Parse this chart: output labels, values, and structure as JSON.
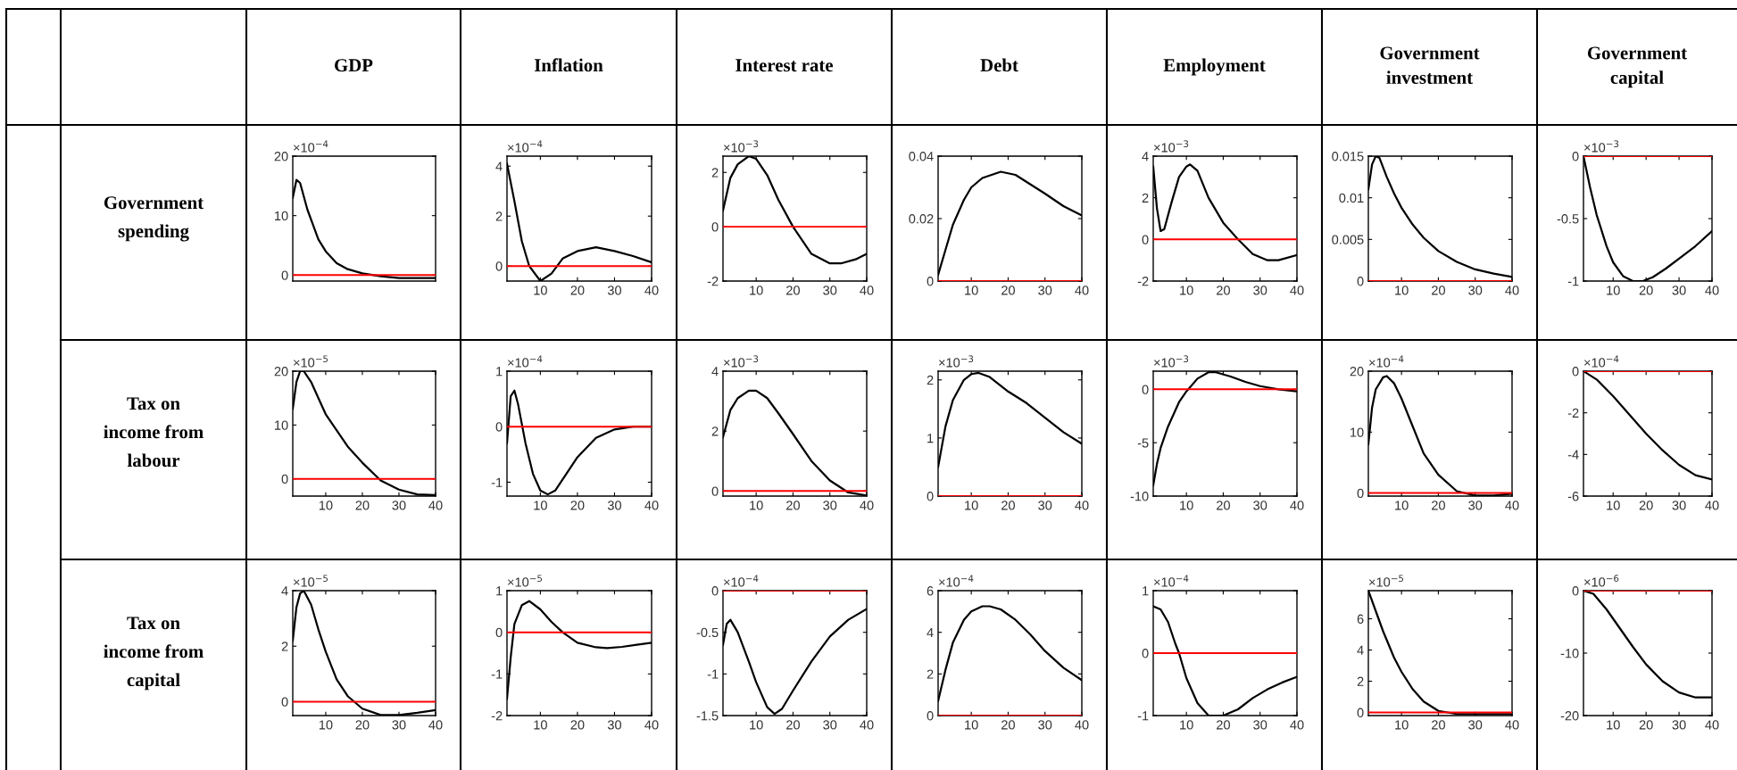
{
  "chart_data": [
    {
      "type": "line",
      "title": "GDP",
      "ylabel": "Government\nspending",
      "tick_labels": "y",
      "xlim": [
        1,
        40
      ],
      "ylim": [
        -1,
        20
      ],
      "yticks": [
        0,
        10,
        20
      ],
      "annotations": [
        "×10$^{−4}$"
      ],
      "ref_lines": [
        {
          "axis": "y",
          "value": 0,
          "color": "#ff0000"
        }
      ],
      "series": [
        {
          "color": "#000000",
          "x": [
            1,
            2,
            3,
            5,
            8,
            10,
            13,
            16,
            20,
            25,
            30,
            40
          ],
          "values": [
            13,
            16,
            15.5,
            11,
            6,
            4,
            2,
            1,
            0.3,
            -0.2,
            -0.5,
            -0.5
          ]
        }
      ]
    },
    {
      "type": "line",
      "title": "Inflation",
      "xlim": [
        1,
        40
      ],
      "ylim": [
        -0.6,
        4.4
      ],
      "xticks": [
        10,
        20,
        30,
        40
      ],
      "yticks": [
        0,
        2,
        4
      ],
      "annotations": [
        "×10$^{−4}$"
      ],
      "ref_lines": [
        {
          "axis": "y",
          "value": 0,
          "color": "#ff0000"
        }
      ],
      "series": [
        {
          "color": "#000000",
          "x": [
            1,
            3,
            5,
            7,
            10,
            13,
            16,
            20,
            25,
            30,
            35,
            40
          ],
          "values": [
            4.1,
            2.6,
            1.0,
            0.0,
            -0.6,
            -0.3,
            0.3,
            0.6,
            0.75,
            0.6,
            0.4,
            0.15
          ]
        }
      ]
    },
    {
      "type": "line",
      "title": "Interest rate",
      "xlim": [
        1,
        40
      ],
      "ylim": [
        -2,
        2.6
      ],
      "xticks": [
        10,
        20,
        30,
        40
      ],
      "yticks": [
        -2,
        0,
        2
      ],
      "annotations": [
        "×10$^{−3}$"
      ],
      "ref_lines": [
        {
          "axis": "y",
          "value": 0,
          "color": "#ff0000"
        }
      ],
      "series": [
        {
          "color": "#000000",
          "x": [
            1,
            3,
            5,
            8,
            10,
            13,
            16,
            20,
            25,
            30,
            33,
            37,
            40
          ],
          "values": [
            0.6,
            1.8,
            2.3,
            2.6,
            2.5,
            1.9,
            1.0,
            0.0,
            -1.0,
            -1.35,
            -1.35,
            -1.2,
            -1.0
          ]
        }
      ]
    },
    {
      "type": "line",
      "title": "Debt",
      "xlim": [
        1,
        40
      ],
      "ylim": [
        0,
        0.04
      ],
      "xticks": [
        10,
        20,
        30,
        40
      ],
      "yticks": [
        0,
        0.02,
        0.04
      ],
      "ref_lines": [
        {
          "axis": "y",
          "value": 0,
          "color": "#ff0000"
        }
      ],
      "series": [
        {
          "color": "#000000",
          "x": [
            1,
            3,
            5,
            8,
            10,
            13,
            18,
            22,
            26,
            30,
            35,
            40
          ],
          "values": [
            0.002,
            0.01,
            0.018,
            0.026,
            0.03,
            0.033,
            0.035,
            0.034,
            0.031,
            0.028,
            0.024,
            0.021
          ]
        }
      ]
    },
    {
      "type": "line",
      "title": "Employment",
      "xlim": [
        1,
        40
      ],
      "ylim": [
        -2,
        4
      ],
      "xticks": [
        10,
        20,
        30,
        40
      ],
      "yticks": [
        -2,
        0,
        2,
        4
      ],
      "annotations": [
        "×10$^{−3}$"
      ],
      "ref_lines": [
        {
          "axis": "y",
          "value": 0,
          "color": "#ff0000"
        }
      ],
      "series": [
        {
          "color": "#000000",
          "x": [
            1,
            2,
            3,
            4,
            6,
            8,
            10,
            11,
            13,
            16,
            20,
            24,
            28,
            32,
            35,
            40
          ],
          "values": [
            3.5,
            1.5,
            0.4,
            0.5,
            1.8,
            3.0,
            3.5,
            3.6,
            3.3,
            2.0,
            0.8,
            0,
            -0.7,
            -1.0,
            -1.0,
            -0.75
          ]
        }
      ]
    },
    {
      "type": "line",
      "title": "Government\ninvestment",
      "xlim": [
        1,
        40
      ],
      "ylim": [
        0,
        0.015
      ],
      "xticks": [
        10,
        20,
        30,
        40
      ],
      "yticks": [
        0,
        0.005,
        0.01,
        0.015
      ],
      "ref_lines": [
        {
          "axis": "y",
          "value": 0,
          "color": "#ff0000"
        }
      ],
      "series": [
        {
          "color": "#000000",
          "x": [
            1,
            2,
            3,
            4,
            6,
            8,
            10,
            13,
            16,
            20,
            25,
            30,
            35,
            40
          ],
          "values": [
            0.011,
            0.014,
            0.015,
            0.0148,
            0.0125,
            0.0105,
            0.0088,
            0.0068,
            0.0052,
            0.0036,
            0.0023,
            0.0014,
            0.0009,
            0.0005
          ]
        }
      ]
    },
    {
      "type": "line",
      "title": "Government\ncapital",
      "xlim": [
        1,
        40
      ],
      "ylim": [
        -1,
        0
      ],
      "xticks": [
        10,
        20,
        30,
        40
      ],
      "yticks": [
        -1,
        -0.5,
        0
      ],
      "annotations": [
        "×10$^{−3}$"
      ],
      "ref_lines": [
        {
          "axis": "y",
          "value": 0,
          "color": "#ff0000"
        }
      ],
      "series": [
        {
          "color": "#000000",
          "x": [
            1,
            3,
            5,
            8,
            10,
            13,
            16,
            19,
            22,
            26,
            30,
            35,
            40
          ],
          "values": [
            0,
            -0.25,
            -0.47,
            -0.72,
            -0.85,
            -0.96,
            -1.0,
            -1.0,
            -0.97,
            -0.9,
            -0.82,
            -0.72,
            -0.6
          ]
        }
      ]
    },
    {
      "type": "line",
      "ylabel": "Tax on\nincome from\nlabour",
      "xlim": [
        1,
        40
      ],
      "ylim": [
        -3.2,
        20
      ],
      "xticks": [
        10,
        20,
        30,
        40
      ],
      "yticks": [
        0,
        10,
        20
      ],
      "annotations": [
        "×10$^{−5}$"
      ],
      "ref_lines": [
        {
          "axis": "y",
          "value": 0,
          "color": "#ff0000"
        }
      ],
      "series": [
        {
          "color": "#000000",
          "x": [
            1,
            2,
            3,
            4,
            6,
            8,
            10,
            13,
            16,
            20,
            25,
            30,
            35,
            40
          ],
          "values": [
            13,
            18,
            20,
            20,
            18,
            15,
            12,
            9,
            6,
            3,
            -0.3,
            -2,
            -2.9,
            -3.0
          ]
        }
      ]
    },
    {
      "type": "line",
      "xlim": [
        1,
        40
      ],
      "ylim": [
        -1.25,
        1
      ],
      "xticks": [
        10,
        20,
        30,
        40
      ],
      "yticks": [
        -1,
        0,
        1
      ],
      "annotations": [
        "×10$^{−4}$"
      ],
      "ref_lines": [
        {
          "axis": "y",
          "value": 0,
          "color": "#ff0000"
        }
      ],
      "series": [
        {
          "color": "#000000",
          "x": [
            1,
            2,
            3,
            4,
            6,
            8,
            10,
            12,
            14,
            17,
            20,
            25,
            30,
            35,
            40
          ],
          "values": [
            -0.3,
            0.55,
            0.65,
            0.4,
            -0.3,
            -0.85,
            -1.15,
            -1.22,
            -1.15,
            -0.85,
            -0.55,
            -0.2,
            -0.05,
            0,
            0
          ]
        }
      ]
    },
    {
      "type": "line",
      "xlim": [
        1,
        40
      ],
      "ylim": [
        -0.17,
        4
      ],
      "xticks": [
        10,
        20,
        30,
        40
      ],
      "yticks": [
        0,
        2,
        4
      ],
      "annotations": [
        "×10$^{−3}$"
      ],
      "ref_lines": [
        {
          "axis": "y",
          "value": 0,
          "color": "#ff0000"
        }
      ],
      "series": [
        {
          "color": "#000000",
          "x": [
            1,
            3,
            5,
            8,
            10,
            13,
            16,
            20,
            25,
            30,
            35,
            40
          ],
          "values": [
            1.8,
            2.7,
            3.1,
            3.35,
            3.35,
            3.1,
            2.6,
            1.9,
            1.0,
            0.35,
            -0.05,
            -0.15
          ]
        }
      ]
    },
    {
      "type": "line",
      "xlim": [
        1,
        40
      ],
      "ylim": [
        0,
        2.15
      ],
      "xticks": [
        10,
        20,
        30,
        40
      ],
      "yticks": [
        0,
        1,
        2
      ],
      "annotations": [
        "×10$^{−3}$"
      ],
      "ref_lines": [
        {
          "axis": "y",
          "value": 0,
          "color": "#ff0000"
        }
      ],
      "series": [
        {
          "color": "#000000",
          "x": [
            1,
            3,
            5,
            8,
            10,
            12,
            15,
            20,
            25,
            30,
            35,
            40
          ],
          "values": [
            0.5,
            1.2,
            1.65,
            2.0,
            2.1,
            2.12,
            2.05,
            1.8,
            1.6,
            1.35,
            1.1,
            0.9
          ]
        }
      ]
    },
    {
      "type": "line",
      "xlim": [
        1,
        40
      ],
      "ylim": [
        -10,
        1.7
      ],
      "xticks": [
        10,
        20,
        30,
        40
      ],
      "yticks": [
        -10,
        -5,
        0
      ],
      "annotations": [
        "×10$^{−3}$"
      ],
      "ref_lines": [
        {
          "axis": "y",
          "value": 0,
          "color": "#ff0000"
        }
      ],
      "series": [
        {
          "color": "#000000",
          "x": [
            1,
            2,
            3,
            5,
            8,
            10,
            13,
            16,
            18,
            22,
            26,
            30,
            35,
            40
          ],
          "values": [
            -9,
            -7,
            -5.5,
            -3.5,
            -1.2,
            -0.2,
            1.0,
            1.6,
            1.6,
            1.2,
            0.7,
            0.3,
            0,
            -0.2
          ]
        }
      ]
    },
    {
      "type": "line",
      "xlim": [
        1,
        40
      ],
      "ylim": [
        -0.5,
        20
      ],
      "xticks": [
        10,
        20,
        30,
        40
      ],
      "yticks": [
        0,
        10,
        20
      ],
      "annotations": [
        "×10$^{−4}$"
      ],
      "ref_lines": [
        {
          "axis": "y",
          "value": 0,
          "color": "#ff0000"
        }
      ],
      "series": [
        {
          "color": "#000000",
          "x": [
            1,
            2,
            3,
            5,
            6,
            8,
            10,
            13,
            16,
            20,
            25,
            30,
            35,
            40
          ],
          "values": [
            8,
            14,
            17,
            19,
            19.2,
            18,
            15.5,
            11,
            6.5,
            3,
            0.3,
            -0.4,
            -0.4,
            -0.1
          ]
        }
      ]
    },
    {
      "type": "line",
      "xlim": [
        1,
        40
      ],
      "ylim": [
        -6,
        0
      ],
      "xticks": [
        10,
        20,
        30,
        40
      ],
      "yticks": [
        -6,
        -4,
        -2,
        0
      ],
      "annotations": [
        "×10$^{−4}$"
      ],
      "ref_lines": [
        {
          "axis": "y",
          "value": 0,
          "color": "#ff0000"
        }
      ],
      "series": [
        {
          "color": "#000000",
          "x": [
            1,
            5,
            10,
            15,
            20,
            25,
            30,
            35,
            40
          ],
          "values": [
            0,
            -0.4,
            -1.2,
            -2.1,
            -3.0,
            -3.8,
            -4.5,
            -5.0,
            -5.2
          ]
        }
      ]
    },
    {
      "type": "line",
      "ylabel": "Tax on\nincome from\ncapital",
      "xlim": [
        1,
        40
      ],
      "ylim": [
        -0.5,
        4
      ],
      "xticks": [
        10,
        20,
        30,
        40
      ],
      "yticks": [
        0,
        2,
        4
      ],
      "annotations": [
        "×10$^{−5}$"
      ],
      "ref_lines": [
        {
          "axis": "y",
          "value": 0,
          "color": "#ff0000"
        }
      ],
      "series": [
        {
          "color": "#000000",
          "x": [
            1,
            2,
            3,
            4,
            6,
            8,
            10,
            13,
            16,
            20,
            25,
            30,
            35,
            40
          ],
          "values": [
            2.2,
            3.4,
            3.9,
            4.0,
            3.5,
            2.6,
            1.8,
            0.8,
            0.2,
            -0.25,
            -0.48,
            -0.48,
            -0.4,
            -0.3
          ]
        }
      ]
    },
    {
      "type": "line",
      "xlim": [
        1,
        40
      ],
      "ylim": [
        -2,
        1
      ],
      "xticks": [
        10,
        20,
        30,
        40
      ],
      "yticks": [
        -2,
        -1,
        0,
        1
      ],
      "annotations": [
        "×10$^{−5}$"
      ],
      "ref_lines": [
        {
          "axis": "y",
          "value": 0,
          "color": "#ff0000"
        }
      ],
      "series": [
        {
          "color": "#000000",
          "x": [
            1,
            2,
            3,
            5,
            7,
            10,
            13,
            16,
            20,
            25,
            28,
            32,
            36,
            40
          ],
          "values": [
            -1.6,
            -0.6,
            0.2,
            0.65,
            0.75,
            0.55,
            0.25,
            0.0,
            -0.25,
            -0.36,
            -0.38,
            -0.35,
            -0.3,
            -0.25
          ]
        }
      ]
    },
    {
      "type": "line",
      "xlim": [
        1,
        40
      ],
      "ylim": [
        -1.5,
        0
      ],
      "xticks": [
        10,
        20,
        30,
        40
      ],
      "yticks": [
        -1.5,
        -1,
        -0.5,
        0
      ],
      "annotations": [
        "×10$^{−4}$"
      ],
      "ref_lines": [
        {
          "axis": "y",
          "value": 0,
          "color": "#ff0000"
        }
      ],
      "series": [
        {
          "color": "#000000",
          "x": [
            1,
            2,
            3,
            5,
            8,
            10,
            13,
            15,
            17,
            20,
            25,
            30,
            35,
            40
          ],
          "values": [
            -0.65,
            -0.4,
            -0.35,
            -0.5,
            -0.85,
            -1.1,
            -1.4,
            -1.48,
            -1.42,
            -1.2,
            -0.85,
            -0.55,
            -0.35,
            -0.22
          ]
        }
      ]
    },
    {
      "type": "line",
      "xlim": [
        1,
        40
      ],
      "ylim": [
        0,
        6
      ],
      "xticks": [
        10,
        20,
        30,
        40
      ],
      "yticks": [
        0,
        2,
        4,
        6
      ],
      "annotations": [
        "×10$^{−4}$"
      ],
      "ref_lines": [
        {
          "axis": "y",
          "value": 0,
          "color": "#ff0000"
        }
      ],
      "series": [
        {
          "color": "#000000",
          "x": [
            1,
            3,
            5,
            8,
            10,
            13,
            15,
            18,
            22,
            26,
            30,
            35,
            40
          ],
          "values": [
            0.7,
            2.2,
            3.5,
            4.6,
            5.0,
            5.25,
            5.25,
            5.1,
            4.6,
            3.9,
            3.1,
            2.3,
            1.7
          ]
        }
      ]
    },
    {
      "type": "line",
      "xlim": [
        1,
        40
      ],
      "ylim": [
        -1,
        1
      ],
      "xticks": [
        10,
        20,
        30,
        40
      ],
      "yticks": [
        -1,
        0,
        1
      ],
      "annotations": [
        "×10$^{−4}$"
      ],
      "ref_lines": [
        {
          "axis": "y",
          "value": 0,
          "color": "#ff0000"
        }
      ],
      "series": [
        {
          "color": "#000000",
          "x": [
            1,
            3,
            5,
            7,
            8,
            10,
            13,
            16,
            20,
            24,
            28,
            32,
            36,
            40
          ],
          "values": [
            0.75,
            0.7,
            0.5,
            0.15,
            0.0,
            -0.4,
            -0.8,
            -1.0,
            -1.0,
            -0.9,
            -0.72,
            -0.58,
            -0.47,
            -0.38
          ]
        }
      ]
    },
    {
      "type": "line",
      "xlim": [
        1,
        40
      ],
      "ylim": [
        -0.2,
        7.8
      ],
      "xticks": [
        10,
        20,
        30,
        40
      ],
      "yticks": [
        0,
        2,
        4,
        6
      ],
      "annotations": [
        "×10$^{−5}$"
      ],
      "ref_lines": [
        {
          "axis": "y",
          "value": 0,
          "color": "#ff0000"
        }
      ],
      "series": [
        {
          "color": "#000000",
          "x": [
            1,
            3,
            5,
            8,
            10,
            13,
            16,
            20,
            25,
            30,
            40
          ],
          "values": [
            7.8,
            6.5,
            5.2,
            3.5,
            2.6,
            1.5,
            0.7,
            0.1,
            -0.1,
            -0.1,
            -0.1
          ]
        }
      ]
    },
    {
      "type": "line",
      "xlim": [
        1,
        40
      ],
      "ylim": [
        -20,
        0
      ],
      "xticks": [
        10,
        20,
        30,
        40
      ],
      "yticks": [
        -20,
        -10,
        0
      ],
      "annotations": [
        "×10$^{−6}$"
      ],
      "ref_lines": [
        {
          "axis": "y",
          "value": 0,
          "color": "#ff0000"
        }
      ],
      "series": [
        {
          "color": "#000000",
          "x": [
            1,
            4,
            8,
            12,
            16,
            20,
            25,
            30,
            35,
            40
          ],
          "values": [
            0,
            -0.5,
            -3,
            -6,
            -9,
            -11.8,
            -14.5,
            -16.3,
            -17.1,
            -17.1
          ]
        }
      ]
    }
  ]
}
